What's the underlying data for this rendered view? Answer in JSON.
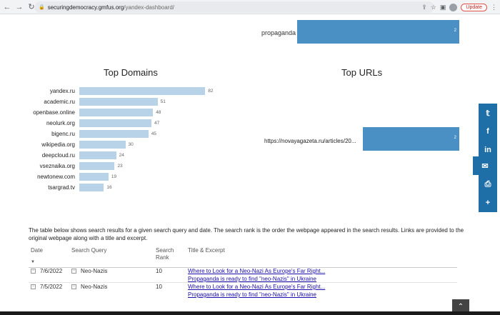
{
  "browser": {
    "url_host": "securingdemocracy.gmfus.org",
    "url_path": "/yandex-dashboard/",
    "update_label": "Update"
  },
  "propaganda": {
    "label": "propaganda",
    "value": "2"
  },
  "chart_data": [
    {
      "type": "bar",
      "title": "Top Domains",
      "categories": [
        "yandex.ru",
        "academic.ru",
        "openbase.online",
        "neolurk.org",
        "bigenc.ru",
        "wikipedia.org",
        "deepcloud.ru",
        "vseznaika.org",
        "newtonew.com",
        "tsargrad.tv"
      ],
      "values": [
        82,
        51,
        48,
        47,
        45,
        30,
        24,
        23,
        19,
        16
      ],
      "color": "#b8d3e8"
    },
    {
      "type": "bar",
      "title": "Top URLs",
      "categories": [
        "https://novayagazeta.ru/articles/20..."
      ],
      "values": [
        2
      ],
      "color": "#4a90c4"
    }
  ],
  "description": "The table below shows search results for a given search query and date. The search rank is the order the webpage appeared in the search results. Links are provided to the original webpage along with a title and excerpt.",
  "table": {
    "headers": {
      "date": "Date",
      "query": "Search Query",
      "rank_line1": "Search",
      "rank_line2": "Rank",
      "title": "Title & Excerpt"
    },
    "rows": [
      {
        "date": "7/6/2022",
        "query": "Neo-Nazis",
        "rank": "10",
        "title": "Where to Look for a Neo-Nazi As Europe's Far Right...",
        "excerpt": "Propaganda is ready to find \"neo-Nazis\" in Ukraine"
      },
      {
        "date": "7/5/2022",
        "query": "Neo-Nazis",
        "rank": "10",
        "title": "Where to Look for a Neo-Nazi As Europe's Far Right...",
        "excerpt": "Propaganda is ready to find \"neo-Nazis\" in Ukraine"
      }
    ]
  }
}
